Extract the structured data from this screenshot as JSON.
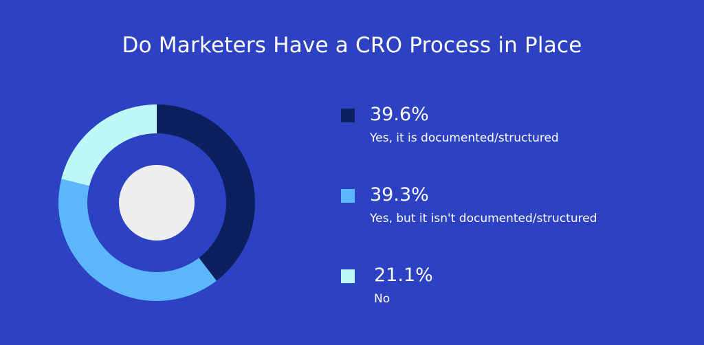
{
  "chart_data": {
    "type": "pie",
    "title": "Do Marketers Have a CRO Process in Place",
    "slices": [
      {
        "label": "Yes, it is documented/structured",
        "value": 39.6,
        "display": "39.6%",
        "color": "#0c1f5f"
      },
      {
        "label": "Yes, but it isn't documented/structured",
        "value": 39.3,
        "display": "39.3%",
        "color": "#5cb6fc"
      },
      {
        "label": "No",
        "value": 21.1,
        "display": "21.1%",
        "color": "#bff8f9"
      }
    ],
    "legend_position": "right",
    "center_color": "#efeeef",
    "background_color": "#2d42c2"
  }
}
